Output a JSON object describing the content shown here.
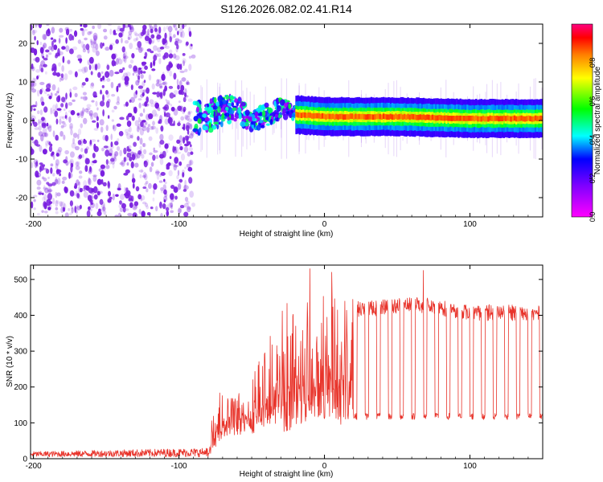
{
  "figure_title": "S126.2026.082.02.41.R14",
  "colors": {
    "snr_line": "#e8332a",
    "spec_low": "#ff00ff",
    "spec_high": "#ff0000",
    "speckle": "#7a1fe0"
  },
  "chart_data": [
    {
      "type": "heatmap",
      "title": "S126.2026.082.02.41.R14",
      "xlabel": "Height of straight line (km)",
      "ylabel": "Frequency (Hz)",
      "xlim": [
        -202,
        150
      ],
      "ylim": [
        -25,
        25
      ],
      "xticks": [
        -200,
        -100,
        0,
        100
      ],
      "yticks": [
        -20,
        -10,
        0,
        10,
        20
      ],
      "colorbar": {
        "label": "Normalized spectral amplitude",
        "range": [
          0.0,
          1.0
        ],
        "ticks": [
          0.0,
          0.2,
          0.4,
          0.6,
          0.8
        ],
        "tick_labels": [
          "0.0",
          "0.2",
          "0.4",
          "0.6",
          "0.8"
        ]
      },
      "features": {
        "noise_region_x": [
          -202,
          -90
        ],
        "transition_region_x": [
          -90,
          -20
        ],
        "tone_line": {
          "x": [
            -20,
            0,
            50,
            100,
            150
          ],
          "freq_hz": [
            1.5,
            1.0,
            1.0,
            0.5,
            0.5
          ],
          "amplitude": 0.9
        }
      }
    },
    {
      "type": "line",
      "title": "",
      "xlabel": "Height of straight line (km)",
      "ylabel": "SNR (10 * v/v)",
      "xlim": [
        -202,
        150
      ],
      "ylim": [
        0,
        540
      ],
      "xticks": [
        -200,
        -100,
        0,
        100
      ],
      "yticks": [
        0,
        100,
        200,
        300,
        400,
        500
      ],
      "series": [
        {
          "name": "SNR",
          "envelope": {
            "x": [
              -202,
              -80,
              -70,
              -50,
              -30,
              -20,
              -10,
              0,
              10,
              20,
              30,
              50,
              70,
              100,
              150
            ],
            "high": [
              20,
              30,
              180,
              200,
              380,
              430,
              410,
              430,
              400,
              440,
              440,
              450,
              450,
              430,
              430
            ],
            "low": [
              5,
              5,
              60,
              70,
              80,
              60,
              120,
              110,
              90,
              110,
              120,
              125,
              120,
              120,
              120
            ],
            "peaks": [
              [
                -10,
                530
              ],
              [
                5,
                520
              ],
              [
                68,
                525
              ]
            ],
            "dropout_start_x": 20,
            "dropout_spacing_km": 8,
            "dropout_level": 118
          }
        }
      ]
    }
  ]
}
